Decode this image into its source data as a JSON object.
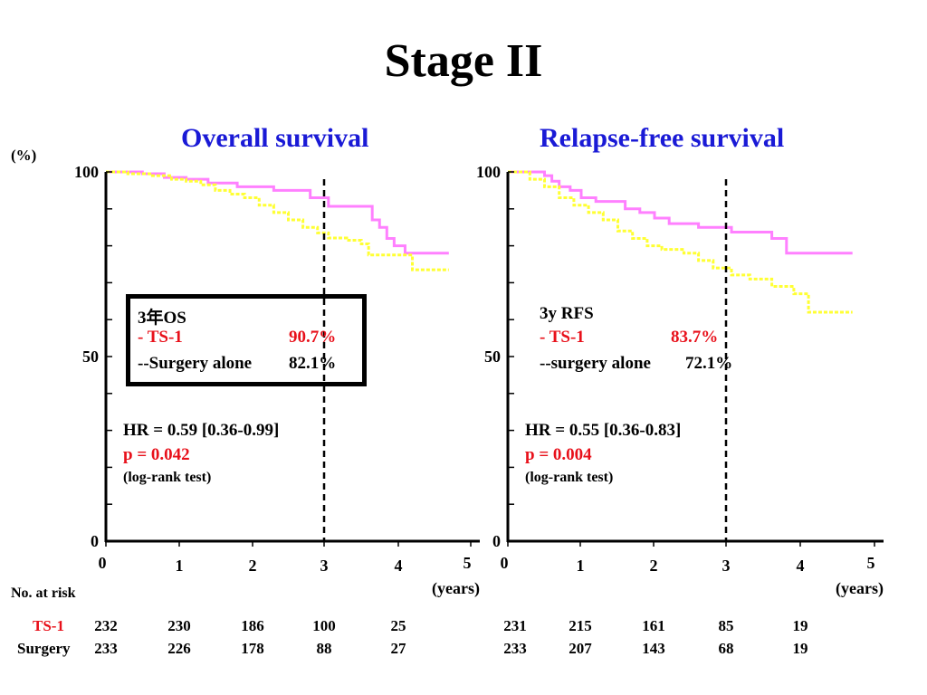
{
  "page": {
    "title": "Stage II",
    "percent_unit": "(%)",
    "risk_label": "No. at risk"
  },
  "colors": {
    "ts1": "#ff80ff",
    "surgery": "#ffff33",
    "title": "#1a1ad6",
    "red": "#e8101a"
  },
  "chart_data": [
    {
      "type": "line",
      "title": "Overall survival",
      "xlabel": "(years)",
      "ylabel": "(%)",
      "xlim": [
        0,
        5
      ],
      "ylim": [
        0,
        100
      ],
      "x_ticks": [
        "0",
        "1",
        "2",
        "3",
        "4",
        "5"
      ],
      "y_ticks": [
        "0",
        "50",
        "100"
      ],
      "series": [
        {
          "name": "TS-1",
          "color": "#ff80ff",
          "step": true,
          "x": [
            0,
            0.5,
            0.8,
            1.1,
            1.4,
            1.8,
            2.3,
            2.8,
            3.05,
            3.6,
            3.65,
            3.75,
            3.85,
            3.95,
            4.1,
            4.7
          ],
          "y": [
            100,
            99.5,
            98.5,
            98,
            97,
            96,
            95,
            93,
            90.7,
            90.7,
            87,
            85,
            82,
            80,
            78,
            78
          ]
        },
        {
          "name": "Surgery",
          "color": "#ffff33",
          "step": true,
          "x": [
            0,
            0.3,
            0.6,
            0.9,
            1.1,
            1.3,
            1.5,
            1.7,
            1.9,
            2.1,
            2.3,
            2.5,
            2.7,
            2.9,
            3.05,
            3.3,
            3.5,
            3.6,
            4.2,
            4.7
          ],
          "y": [
            100,
            99.5,
            99,
            98,
            97.5,
            96.5,
            95,
            94,
            93,
            91,
            89,
            87,
            85,
            83.5,
            82.1,
            81.5,
            80.5,
            77.5,
            73.5,
            73.5
          ]
        }
      ],
      "vline_x": 3,
      "legend_box": {
        "heading": "3年OS",
        "ts1_label": "- TS-1",
        "ts1_value": "90.7%",
        "surgery_label": "--Surgery alone",
        "surgery_value": "82.1%"
      },
      "stats": {
        "hr": "HR = 0.59 [0.36-0.99]",
        "p": "p = 0.042",
        "test": "(log-rank test)"
      }
    },
    {
      "type": "line",
      "title": "Relapse-free survival",
      "xlabel": "(years)",
      "ylabel": "",
      "xlim": [
        0,
        5
      ],
      "ylim": [
        0,
        100
      ],
      "x_ticks": [
        "0",
        "1",
        "2",
        "3",
        "4",
        "5"
      ],
      "y_ticks": [
        "0",
        "50",
        "100"
      ],
      "series": [
        {
          "name": "TS-1",
          "color": "#ff80ff",
          "step": true,
          "x": [
            0,
            0.5,
            0.6,
            0.7,
            0.85,
            1.0,
            1.2,
            1.6,
            1.8,
            2.0,
            2.2,
            2.6,
            3.05,
            3.6,
            3.8,
            4.7
          ],
          "y": [
            100,
            99,
            97.5,
            96,
            95,
            93,
            92,
            90,
            89,
            87.5,
            86,
            85,
            83.7,
            82,
            78,
            78
          ]
        },
        {
          "name": "Surgery",
          "color": "#ffff33",
          "step": true,
          "x": [
            0,
            0.3,
            0.5,
            0.7,
            0.9,
            1.1,
            1.3,
            1.5,
            1.7,
            1.9,
            2.1,
            2.4,
            2.6,
            2.8,
            3.05,
            3.3,
            3.6,
            3.9,
            4.1,
            4.7
          ],
          "y": [
            100,
            98,
            96,
            93,
            91,
            89,
            87,
            84,
            82,
            80,
            79,
            78,
            76,
            74,
            72.1,
            71,
            69,
            67,
            62,
            62
          ]
        }
      ],
      "vline_x": 3,
      "legend_box": {
        "heading": "3y RFS",
        "ts1_label": "- TS-1",
        "ts1_value": "83.7%",
        "surgery_label": "--surgery alone",
        "surgery_value": "72.1%"
      },
      "stats": {
        "hr": "HR = 0.55 [0.36-0.83]",
        "p": "p = 0.004",
        "test": "(log-rank test)"
      }
    }
  ],
  "risk_table": {
    "rows": [
      {
        "label": "TS-1",
        "os": [
          "232",
          "230",
          "186",
          "100",
          "25"
        ],
        "rfs": [
          "231",
          "215",
          "161",
          "85",
          "19"
        ]
      },
      {
        "label": "Surgery",
        "os": [
          "233",
          "226",
          "178",
          "88",
          "27"
        ],
        "rfs": [
          "233",
          "207",
          "143",
          "68",
          "19"
        ]
      }
    ]
  }
}
